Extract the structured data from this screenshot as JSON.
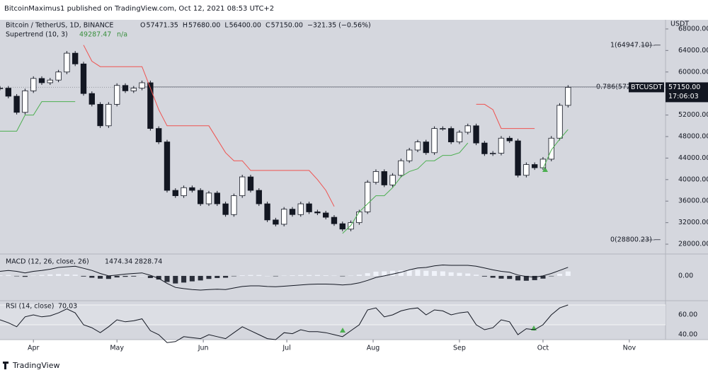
{
  "header": {
    "text": "BitcoinMaximus1 published on TradingView.com, Oct 12, 2021 08:53 UTC+2"
  },
  "footer": {
    "brand": "TradingView"
  },
  "chart_data": {
    "type": "candlestick",
    "symbol": "Bitcoin / TetherUS, 1D, BINANCE",
    "ohlc": [
      {
        "key": "O",
        "value": "57471.35"
      },
      {
        "key": "H",
        "value": "57680.00"
      },
      {
        "key": "L",
        "value": "56400.00"
      },
      {
        "key": "C",
        "value": "57150.00"
      }
    ],
    "change": "−321.35 (−0.56%)",
    "indicator": {
      "name": "Supertrend (10, 3)",
      "value": "49287.47",
      "extra": "n/a"
    },
    "y_axis_label": "USDT",
    "ticker": "BTCUSDT",
    "countdown": "17:06:03",
    "last_price": {
      "value": 57150,
      "label": "57150.00"
    },
    "up_color": "#ffffff",
    "down_color": "#131722",
    "xlim": [
      -12,
      227
    ],
    "xticks": [
      {
        "value": 0,
        "label": "Apr"
      },
      {
        "value": 30,
        "label": "May"
      },
      {
        "value": 61,
        "label": "Jun"
      },
      {
        "value": 91,
        "label": "Jul"
      },
      {
        "value": 122,
        "label": "Aug"
      },
      {
        "value": 153,
        "label": "Sep"
      },
      {
        "value": 183,
        "label": "Oct"
      },
      {
        "value": 214,
        "label": "Nov"
      }
    ],
    "ylim": [
      26300,
      69700
    ],
    "yticks": [
      {
        "value": 28000,
        "label": "28000.00"
      },
      {
        "value": 32000,
        "label": "32000.00"
      },
      {
        "value": 36000,
        "label": "36000.00"
      },
      {
        "value": 40000,
        "label": "40000.00"
      },
      {
        "value": 44000,
        "label": "44000.00"
      },
      {
        "value": 48000,
        "label": "48000.00"
      },
      {
        "value": 52000,
        "label": "52000.00"
      },
      {
        "value": 56000,
        "label": "56000.00"
      },
      {
        "value": 60000,
        "label": "60000.00"
      },
      {
        "value": 64000,
        "label": "64000.00"
      },
      {
        "value": 68000,
        "label": "68000.00"
      }
    ],
    "fib_levels": [
      {
        "value": 64947.1,
        "label": "1(64947.10) —"
      },
      {
        "value": 57220,
        "label": "0.786(572"
      },
      {
        "value": 28800.23,
        "label": "0(28800.23) —"
      }
    ],
    "x": [
      -12,
      -9,
      -6,
      -3,
      0,
      3,
      6,
      9,
      12,
      15,
      18,
      21,
      24,
      27,
      30,
      33,
      36,
      39,
      42,
      45,
      48,
      51,
      54,
      57,
      60,
      63,
      66,
      69,
      72,
      75,
      78,
      81,
      84,
      87,
      90,
      93,
      96,
      99,
      102,
      105,
      108,
      111,
      114,
      117,
      120,
      123,
      126,
      129,
      132,
      135,
      138,
      141,
      144,
      147,
      150,
      153,
      156,
      159,
      162,
      165,
      168,
      171,
      174,
      177,
      180,
      183,
      186,
      189,
      192
    ],
    "series": [
      {
        "name": "BTCUSDT",
        "values": [
          57000,
          55500,
          52500,
          56500,
          58800,
          58000,
          58500,
          60000,
          63500,
          61500,
          56000,
          54000,
          50000,
          54000,
          57500,
          56500,
          57000,
          58000,
          49500,
          47000,
          38000,
          37000,
          38500,
          38000,
          35500,
          37500,
          35500,
          33500,
          37000,
          40500,
          38000,
          35500,
          32500,
          31700,
          34500,
          33500,
          35500,
          34000,
          33800,
          33000,
          31800,
          30800,
          32000,
          34000,
          39500,
          41500,
          39000,
          40800,
          43500,
          45500,
          47000,
          45000,
          49500,
          49500,
          47000,
          48800,
          50000,
          46800,
          44800,
          44900,
          47700,
          47200,
          40800,
          42800,
          42200,
          43800,
          47700,
          53800,
          57150
        ]
      },
      {
        "name": "Supertrend up",
        "color": "#4caf50",
        "values": [
          49000,
          49000,
          49000,
          52000,
          52000,
          54500,
          54500,
          54500,
          54500,
          54500,
          null,
          null,
          null,
          null,
          null,
          null,
          null,
          null,
          null,
          null,
          null,
          null,
          null,
          null,
          null,
          null,
          null,
          null,
          null,
          null,
          null,
          null,
          null,
          null,
          null,
          null,
          null,
          null,
          null,
          null,
          null,
          30000,
          31500,
          34000,
          35500,
          37000,
          37000,
          38500,
          40500,
          41500,
          42000,
          43500,
          43500,
          44500,
          44500,
          45000,
          46800,
          null,
          null,
          null,
          null,
          null,
          null,
          null,
          null,
          42000,
          45500,
          47500,
          49300
        ]
      },
      {
        "name": "Supertrend down",
        "color": "#ef5350",
        "values": [
          null,
          null,
          null,
          null,
          null,
          null,
          null,
          null,
          null,
          null,
          65000,
          62000,
          61000,
          61000,
          61000,
          61000,
          61000,
          61000,
          57000,
          53000,
          50000,
          50000,
          50000,
          50000,
          50000,
          50000,
          47500,
          45000,
          43500,
          43500,
          41700,
          41700,
          41700,
          41700,
          41700,
          41700,
          41700,
          41700,
          40000,
          38000,
          35000,
          null,
          null,
          null,
          null,
          null,
          null,
          null,
          null,
          null,
          null,
          null,
          null,
          null,
          null,
          null,
          null,
          54000,
          54000,
          53000,
          49500,
          49500,
          49500,
          49500,
          49500,
          null,
          null,
          null,
          null
        ]
      }
    ],
    "macd": {
      "name": "MACD (12, 26, close, 26)",
      "hist_label": "1474.34",
      "line_label": "2828.74",
      "ylim": [
        -8200,
        7000
      ],
      "yticks": [
        {
          "value": 0,
          "label": "0.00"
        }
      ],
      "line_color": "#131722",
      "pos_color": "#f0f3fa",
      "neg_color": "#2a2e39",
      "line": [
        1500,
        1800,
        1500,
        1000,
        1500,
        1800,
        2200,
        2800,
        3000,
        3200,
        2500,
        1800,
        800,
        0,
        300,
        600,
        800,
        1000,
        200,
        -800,
        -2500,
        -3800,
        -4200,
        -4500,
        -4700,
        -4500,
        -4400,
        -4500,
        -4000,
        -3500,
        -3300,
        -3300,
        -3500,
        -3600,
        -3400,
        -3200,
        -3000,
        -2800,
        -2700,
        -2700,
        -2800,
        -3000,
        -2800,
        -2300,
        -1500,
        -500,
        0,
        600,
        1200,
        2000,
        2600,
        2800,
        3300,
        3600,
        3500,
        3500,
        3500,
        3200,
        2600,
        2000,
        1500,
        1200,
        300,
        -200,
        -400,
        0,
        800,
        1800,
        2828.74
      ],
      "histogram": [
        200,
        300,
        -100,
        -300,
        100,
        300,
        500,
        600,
        500,
        400,
        -200,
        -600,
        -900,
        -1000,
        -500,
        -300,
        -200,
        0,
        -700,
        -1200,
        -2000,
        -2500,
        -2200,
        -1800,
        -1500,
        -1000,
        -700,
        -600,
        -100,
        200,
        300,
        300,
        0,
        -100,
        100,
        200,
        300,
        300,
        300,
        200,
        100,
        -100,
        100,
        400,
        900,
        1400,
        1500,
        1700,
        1800,
        2000,
        2000,
        1700,
        1600,
        1500,
        1200,
        1000,
        800,
        400,
        -200,
        -600,
        -900,
        -1000,
        -1500,
        -1600,
        -1400,
        -900,
        -100,
        700,
        1474.34
      ]
    },
    "rsi": {
      "name": "RSI (14, close)",
      "value_label": "70.03",
      "color": "#131722",
      "ylim": [
        35,
        74.3
      ],
      "yticks": [
        {
          "value": 40,
          "label": "40.00"
        },
        {
          "value": 60,
          "label": "60.00"
        }
      ],
      "levels": [
        70,
        50
      ],
      "values": [
        55,
        52,
        48,
        58,
        60,
        58,
        59,
        62,
        66,
        62,
        50,
        47,
        42,
        48,
        55,
        53,
        54,
        56,
        44,
        40,
        32,
        33,
        38,
        37,
        36,
        40,
        38,
        36,
        42,
        48,
        44,
        40,
        36,
        35,
        42,
        41,
        45,
        43,
        43,
        42,
        40,
        38,
        44,
        50,
        65,
        67,
        58,
        60,
        64,
        66,
        67,
        60,
        65,
        64,
        60,
        62,
        63,
        50,
        45,
        47,
        55,
        53,
        40,
        46,
        45,
        50,
        60,
        67,
        70.03
      ]
    }
  }
}
